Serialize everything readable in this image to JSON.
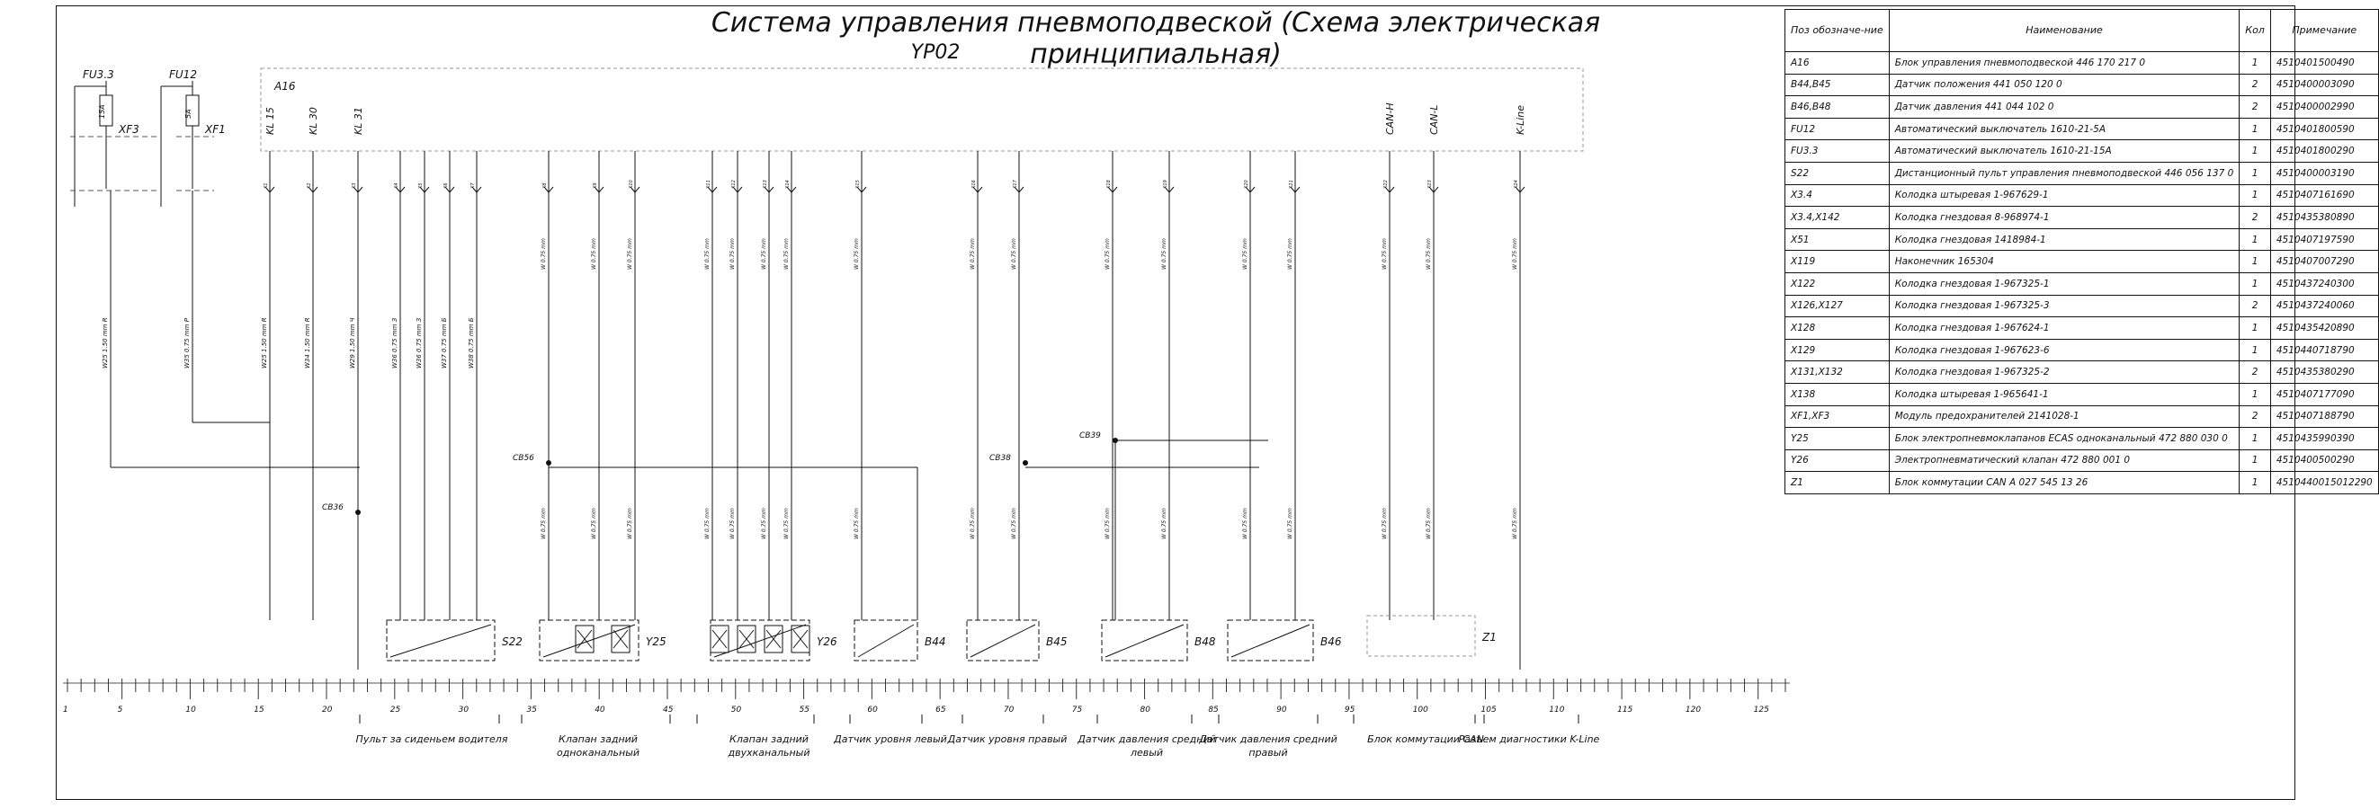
{
  "title": "Система управления пневмоподвеской (Схема электрическая принципиальная)",
  "subtitle": "YP02",
  "colors": {
    "line": "#111111",
    "dashed": "#999999",
    "background": "#ffffff"
  },
  "bom": {
    "headers": {
      "pos": "Поз обозначе-ние",
      "name": "Наименование",
      "qty": "Кол",
      "note": "Примечание"
    },
    "rows": [
      {
        "pos": "A16",
        "name": "Блок управления пневмоподвеской 446 170 217 0",
        "qty": "1",
        "note": "4510401500490"
      },
      {
        "pos": "B44,B45",
        "name": "Датчик положения 441 050 120 0",
        "qty": "2",
        "note": "4510400003090"
      },
      {
        "pos": "B46,B48",
        "name": "Датчик давления 441 044 102 0",
        "qty": "2",
        "note": "4510400002990"
      },
      {
        "pos": "FU12",
        "name": "Автоматический выключатель 1610-21-5А",
        "qty": "1",
        "note": "4510401800590"
      },
      {
        "pos": "FU3.3",
        "name": "Автоматический выключатель 1610-21-15А",
        "qty": "1",
        "note": "4510401800290"
      },
      {
        "pos": "S22",
        "name": "Дистанционный пульт управления пневмоподвеской 446 056 137 0",
        "qty": "1",
        "note": "4510400003190"
      },
      {
        "pos": "X3.4",
        "name": "Колодка штыревая 1-967629-1",
        "qty": "1",
        "note": "4510407161690"
      },
      {
        "pos": "X3.4,X142",
        "name": "Колодка гнездовая 8-968974-1",
        "qty": "2",
        "note": "4510435380890"
      },
      {
        "pos": "X51",
        "name": "Колодка гнездовая 1418984-1",
        "qty": "1",
        "note": "4510407197590"
      },
      {
        "pos": "X119",
        "name": "Наконечник 165304",
        "qty": "1",
        "note": "4510407007290"
      },
      {
        "pos": "X122",
        "name": "Колодка гнездовая 1-967325-1",
        "qty": "1",
        "note": "4510437240300"
      },
      {
        "pos": "X126,X127",
        "name": "Колодка гнездовая 1-967325-3",
        "qty": "2",
        "note": "4510437240060"
      },
      {
        "pos": "X128",
        "name": "Колодка гнездовая 1-967624-1",
        "qty": "1",
        "note": "4510435420890"
      },
      {
        "pos": "X129",
        "name": "Колодка гнездовая 1-967623-6",
        "qty": "1",
        "note": "4510440718790"
      },
      {
        "pos": "X131,X132",
        "name": "Колодка гнездовая 1-967325-2",
        "qty": "2",
        "note": "4510435380290"
      },
      {
        "pos": "X138",
        "name": "Колодка штыревая 1-965641-1",
        "qty": "1",
        "note": "4510407177090"
      },
      {
        "pos": "XF1,XF3",
        "name": "Модуль предохранителей 2141028-1",
        "qty": "2",
        "note": "4510407188790"
      },
      {
        "pos": "Y25",
        "name": "Блок электропневмоклапанов ECAS одноканальный 472 880 030 0",
        "qty": "1",
        "note": "4510435990390"
      },
      {
        "pos": "Y26",
        "name": "Электропневматический клапан 472 880 001 0",
        "qty": "1",
        "note": "4510400500290"
      },
      {
        "pos": "Z1",
        "name": "Блок коммутации CAN A 027 545 13 26",
        "qty": "1",
        "note": "4510440015012290"
      }
    ]
  },
  "fuses": [
    {
      "id": "FU3.3",
      "rating": "15А",
      "module": "XF3"
    },
    {
      "id": "FU12",
      "rating": "5А",
      "module": "XF1"
    }
  ],
  "ecu": {
    "id": "A16",
    "pins": [
      "KL 15",
      "KL 30",
      "KL 31",
      "",
      "",
      "",
      "",
      "",
      "",
      "",
      "",
      "",
      "",
      "",
      "",
      "",
      "",
      "",
      "",
      "",
      "",
      "",
      "",
      "CAN-H",
      "CAN-L",
      "K-Line"
    ]
  },
  "splices": [
    "CB36",
    "CB56",
    "CB38",
    "CB39"
  ],
  "wire_labels": [
    "W25 1.50 mm R",
    "W35 0.75 mm P",
    "W25 1.50 mm R",
    "W34 1.50 mm R",
    "W29 1.50 mm Ч",
    "W36 0.75 mm З",
    "W36 0.75 mm З",
    "W37 0.75 mm Б",
    "W38 0.75 mm Б"
  ],
  "components": [
    {
      "id": "S22",
      "group": "Пульт за сиденьем водителя"
    },
    {
      "id": "Y25",
      "group": "Клапан задний одноканальный"
    },
    {
      "id": "Y26",
      "group": "Клапан задний двухканальный"
    },
    {
      "id": "B44",
      "group": "Датчик уровня левый"
    },
    {
      "id": "B45",
      "group": "Датчик уровня правый"
    },
    {
      "id": "B48",
      "group": "Датчик давления средний левый"
    },
    {
      "id": "B46",
      "group": "Датчик давления средний правый"
    },
    {
      "id": "Z1",
      "group": "Блок коммутации CAN"
    },
    {
      "id": "",
      "group": "Разъем диагностики K-Line"
    }
  ],
  "ruler": {
    "ticks": [
      "1",
      "5",
      "10",
      "15",
      "20",
      "25",
      "30",
      "35",
      "40",
      "45",
      "50",
      "55",
      "60",
      "65",
      "70",
      "75",
      "80",
      "85",
      "90",
      "95",
      "100",
      "105",
      "110",
      "115",
      "120",
      "125"
    ]
  }
}
